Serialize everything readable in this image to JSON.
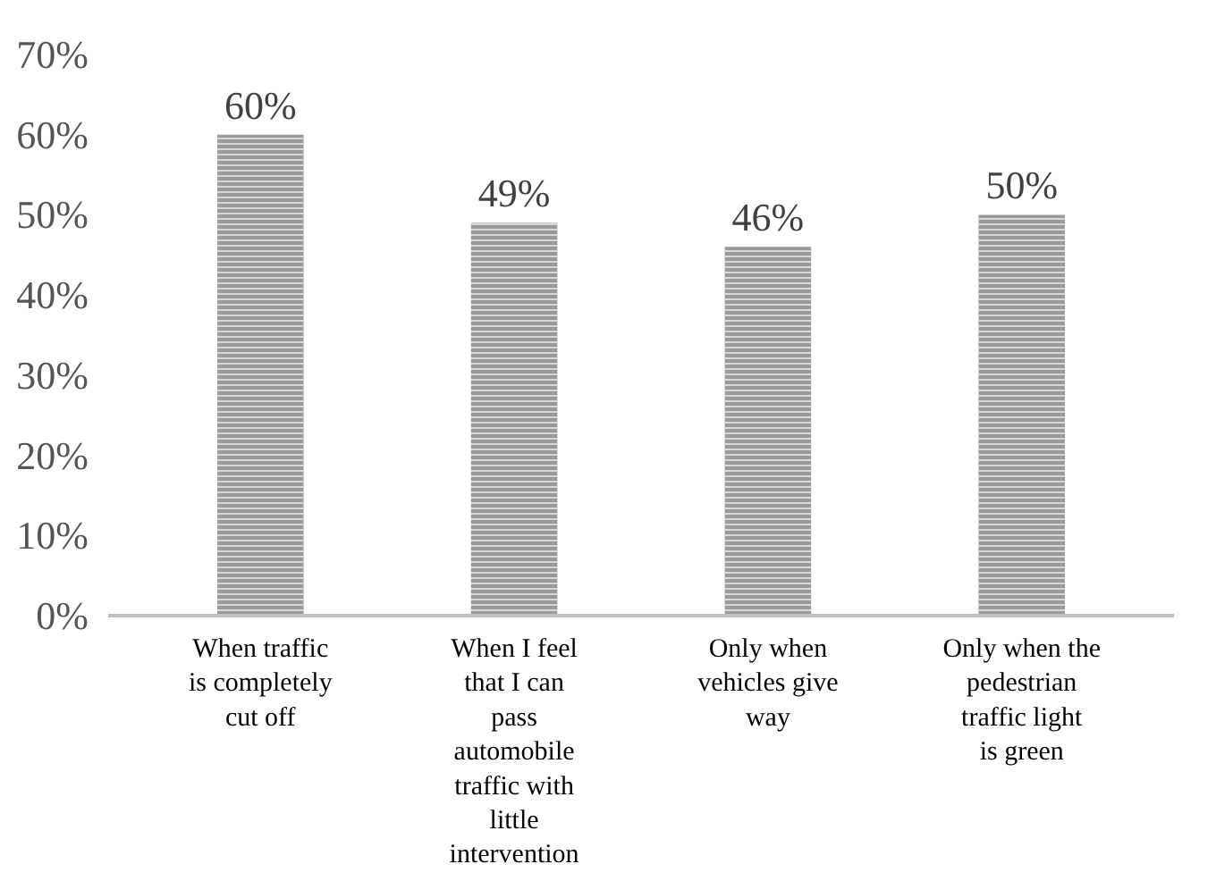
{
  "chart_data": {
    "type": "bar",
    "categories": [
      "When traffic is completely cut off",
      "When I feel that I can pass automobile traffic with little intervention",
      "Only when vehicles give way",
      "Only when the pedestrian traffic light is green"
    ],
    "values": [
      60,
      49,
      46,
      50
    ],
    "value_labels": [
      "60%",
      "49%",
      "46%",
      "50%"
    ],
    "color": "#9a9a9a",
    "ylim": [
      0,
      70
    ],
    "yticks": [
      {
        "value": 0,
        "label": "0%"
      },
      {
        "value": 10,
        "label": "10%"
      },
      {
        "value": 20,
        "label": "20%"
      },
      {
        "value": 30,
        "label": "30%"
      },
      {
        "value": 40,
        "label": "40%"
      },
      {
        "value": 50,
        "label": "50%"
      },
      {
        "value": 60,
        "label": "60%"
      },
      {
        "value": 70,
        "label": "70%"
      }
    ],
    "grid": false
  }
}
